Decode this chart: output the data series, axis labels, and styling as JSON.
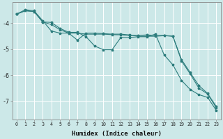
{
  "xlabel": "Humidex (Indice chaleur)",
  "background_color": "#cce8e8",
  "grid_color": "#ffffff",
  "line_color": "#2d7d7d",
  "x": [
    0,
    1,
    2,
    3,
    4,
    5,
    6,
    7,
    8,
    9,
    10,
    11,
    12,
    13,
    14,
    15,
    16,
    17,
    18,
    19,
    20,
    21,
    22,
    23
  ],
  "line1": [
    -3.65,
    -3.52,
    -3.55,
    -3.95,
    -4.05,
    -4.25,
    -4.38,
    -4.38,
    -4.42,
    -4.42,
    -4.42,
    -4.44,
    -4.45,
    -4.47,
    -4.47,
    -4.45,
    -4.47,
    -4.47,
    -4.5,
    -5.45,
    -5.95,
    -6.5,
    -6.72,
    -7.25
  ],
  "line2": [
    -3.65,
    -3.48,
    -3.52,
    -3.9,
    -4.3,
    -4.38,
    -4.38,
    -4.65,
    -4.38,
    -4.38,
    -4.4,
    -4.42,
    -4.42,
    -4.45,
    -4.5,
    -4.5,
    -4.5,
    -4.48,
    -4.5,
    -5.4,
    -5.9,
    -6.4,
    -6.7,
    -7.2
  ],
  "line3": [
    -3.65,
    -3.52,
    -3.55,
    -3.95,
    -3.97,
    -4.2,
    -4.35,
    -4.35,
    -4.52,
    -4.88,
    -5.02,
    -5.02,
    -4.55,
    -4.55,
    -4.52,
    -4.52,
    -4.42,
    -5.22,
    -5.6,
    -6.2,
    -6.55,
    -6.75,
    -6.85,
    -7.35
  ],
  "ylim": [
    -7.7,
    -3.2
  ],
  "xlim": [
    -0.5,
    23.5
  ],
  "yticks": [
    -7,
    -6,
    -5,
    -4
  ],
  "xtick_labels_sparse": [
    "0",
    "1",
    "2",
    "3",
    "4",
    "5",
    "6",
    "7",
    "8",
    "9",
    "10",
    "11",
    "12",
    "13",
    "14",
    "15",
    "16",
    "17",
    "18",
    "19",
    "20",
    "21",
    "22",
    "23"
  ],
  "markersize": 2.5,
  "linewidth": 0.8
}
